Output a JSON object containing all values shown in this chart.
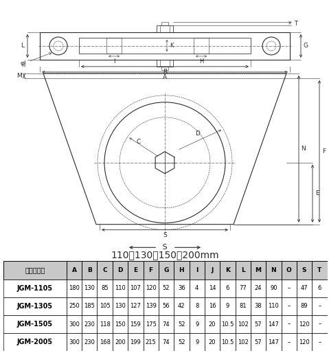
{
  "table_headers": [
    "商品コード",
    "A",
    "B",
    "C",
    "D",
    "E",
    "F",
    "G",
    "H",
    "I",
    "J",
    "K",
    "L",
    "M",
    "N",
    "O",
    "S",
    "T"
  ],
  "table_rows": [
    [
      "JGM-1105",
      "180",
      "130",
      "85",
      "110",
      "107",
      "120",
      "52",
      "36",
      "4",
      "14",
      "6",
      "77",
      "24",
      "90",
      "–",
      "47",
      "6"
    ],
    [
      "JGM-1305",
      "250",
      "185",
      "105",
      "130",
      "127",
      "139",
      "56",
      "42",
      "8",
      "16",
      "9",
      "81",
      "38",
      "110",
      "–",
      "89",
      "–"
    ],
    [
      "JGM-1505",
      "300",
      "230",
      "118",
      "150",
      "159",
      "175",
      "74",
      "52",
      "9",
      "20",
      "10.5",
      "102",
      "57",
      "147",
      "–",
      "120",
      "–"
    ],
    [
      "JGM-2005",
      "300",
      "230",
      "168",
      "200",
      "199",
      "215",
      "74",
      "52",
      "9",
      "20",
      "10.5",
      "102",
      "57",
      "147",
      "–",
      "120",
      "–"
    ]
  ],
  "header_bg": "#c8c8c8",
  "s_sizes": "110・130・150・200mm",
  "bg_color": "#ffffff",
  "dc": "#2a2a2a"
}
